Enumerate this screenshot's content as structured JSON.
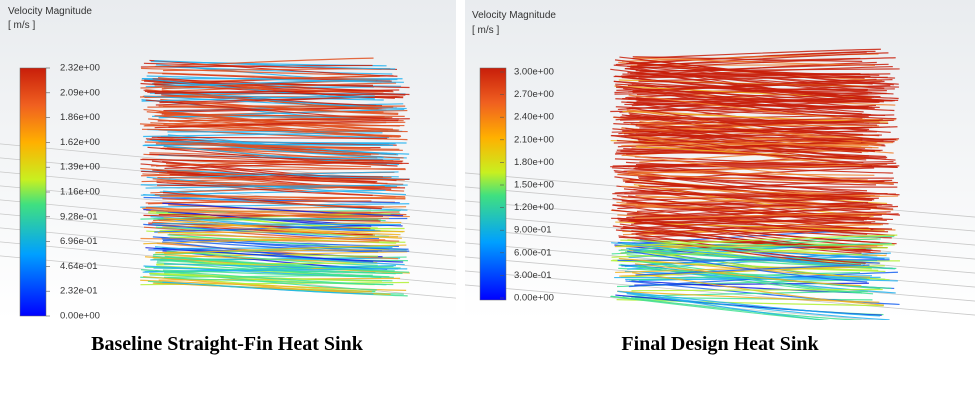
{
  "panels": [
    {
      "legend": {
        "title": "Velocity Magnitude",
        "unit": "[ m/s ]",
        "ticks": [
          "2.32e+00",
          "2.09e+00",
          "1.86e+00",
          "1.62e+00",
          "1.39e+00",
          "1.16e+00",
          "9.28e-01",
          "6.96e-01",
          "4.64e-01",
          "2.32e-01",
          "0.00e+00"
        ]
      },
      "caption": "Baseline Straight-Fin Heat Sink"
    },
    {
      "legend": {
        "title": "Velocity Magnitude",
        "unit": "[ m/s ]",
        "ticks": [
          "3.00e+00",
          "2.70e+00",
          "2.40e+00",
          "2.10e+00",
          "1.80e+00",
          "1.50e+00",
          "1.20e+00",
          "9.00e-01",
          "6.00e-01",
          "3.00e-01",
          "0.00e+00"
        ]
      },
      "caption": "Final Design Heat Sink"
    }
  ]
}
